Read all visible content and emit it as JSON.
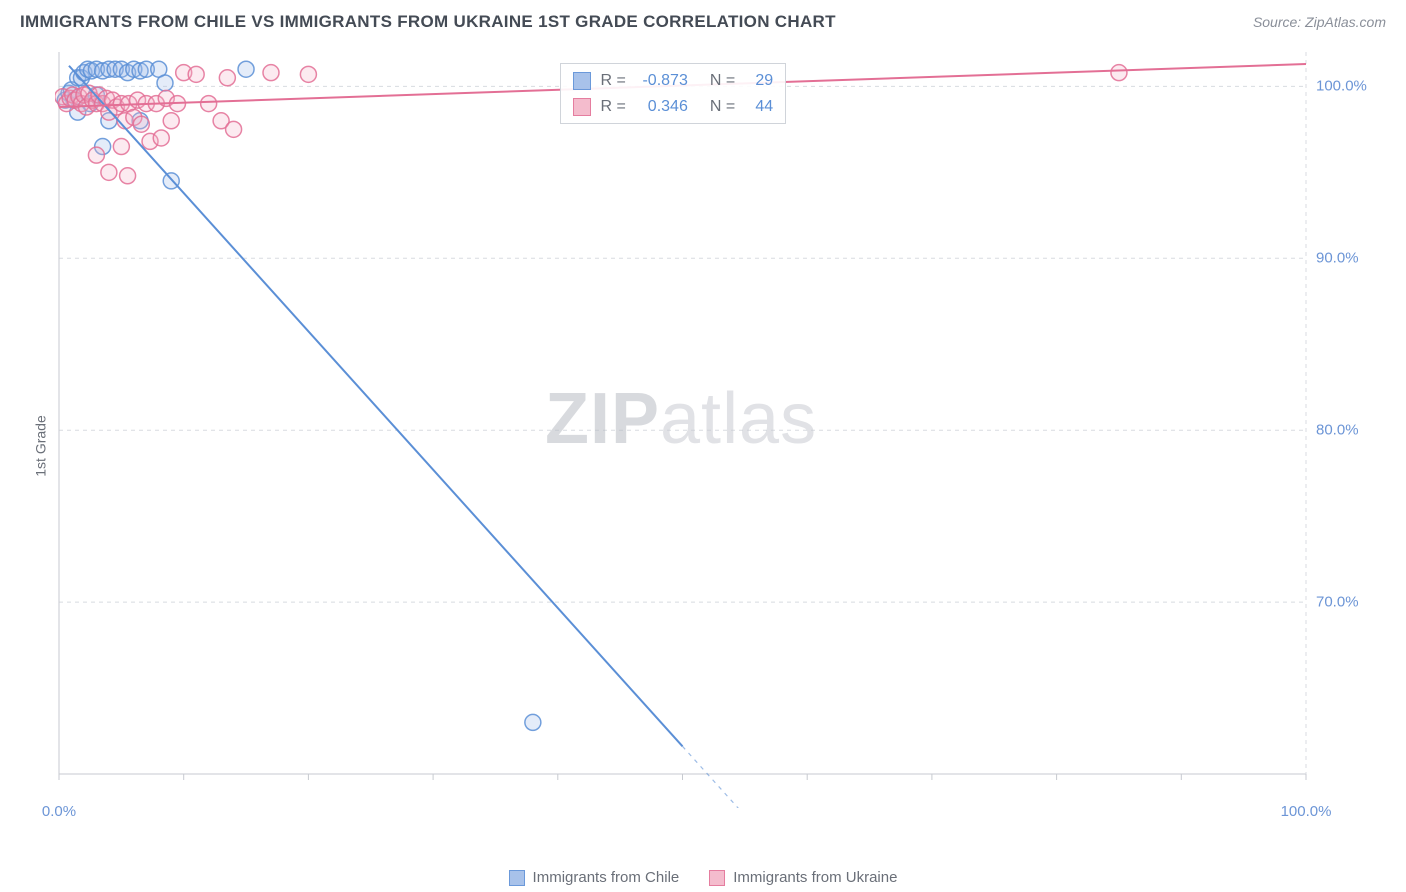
{
  "title": "IMMIGRANTS FROM CHILE VS IMMIGRANTS FROM UKRAINE 1ST GRADE CORRELATION CHART",
  "source_label": "Source: ZipAtlas.com",
  "ylabel": "1st Grade",
  "watermark": {
    "bold": "ZIP",
    "rest": "atlas"
  },
  "chart": {
    "type": "scatter",
    "background_color": "#ffffff",
    "grid_color": "#d8dbe0",
    "grid_dash": "4,4",
    "axis_line_color": "#c7cad0",
    "xlim": [
      0,
      100
    ],
    "ylim": [
      60,
      102
    ],
    "ytick_values": [
      70,
      80,
      90,
      100
    ],
    "ytick_labels": [
      "70.0%",
      "80.0%",
      "90.0%",
      "100.0%"
    ],
    "xtick_values": [
      0,
      100
    ],
    "xtick_labels": [
      "0.0%",
      "100.0%"
    ],
    "marker_radius": 8,
    "marker_fill_opacity": 0.28,
    "marker_stroke_width": 1.5,
    "line_width": 2,
    "series": [
      {
        "name": "Immigrants from Chile",
        "color_stroke": "#5b8fd6",
        "color_fill": "#9fbce8",
        "R_label": "R =",
        "R_value": "-0.873",
        "N_label": "N =",
        "N_value": "29",
        "trend": {
          "x1": 0.8,
          "y1": 101.2,
          "x2": 52,
          "y2": 60,
          "dash_after_x": 50
        },
        "points": [
          [
            0.5,
            99.2
          ],
          [
            0.8,
            99.6
          ],
          [
            1.0,
            99.8
          ],
          [
            1.2,
            99.2
          ],
          [
            1.5,
            100.5
          ],
          [
            1.8,
            100.5
          ],
          [
            2.0,
            100.8
          ],
          [
            2.3,
            101.0
          ],
          [
            2.6,
            100.9
          ],
          [
            3.0,
            101.0
          ],
          [
            3.5,
            100.9
          ],
          [
            4.0,
            101.0
          ],
          [
            4.5,
            101.0
          ],
          [
            5.0,
            101.0
          ],
          [
            5.5,
            100.8
          ],
          [
            6.0,
            101.0
          ],
          [
            6.5,
            100.9
          ],
          [
            7.0,
            101.0
          ],
          [
            8.0,
            101.0
          ],
          [
            8.5,
            100.2
          ],
          [
            2.5,
            99.0
          ],
          [
            3.0,
            99.5
          ],
          [
            4.0,
            98.0
          ],
          [
            3.5,
            96.5
          ],
          [
            1.5,
            98.5
          ],
          [
            6.5,
            98.0
          ],
          [
            9.0,
            94.5
          ],
          [
            15.0,
            101.0
          ],
          [
            38.0,
            63.0
          ]
        ]
      },
      {
        "name": "Immigrants from Ukraine",
        "color_stroke": "#e36f95",
        "color_fill": "#f3b5c8",
        "R_label": "R =",
        "R_value": "0.346",
        "N_label": "N =",
        "N_value": "44",
        "trend": {
          "x1": 0,
          "y1": 98.8,
          "x2": 100,
          "y2": 101.3
        },
        "points": [
          [
            0.3,
            99.4
          ],
          [
            0.6,
            99.0
          ],
          [
            0.9,
            99.3
          ],
          [
            1.1,
            99.5
          ],
          [
            1.3,
            99.2
          ],
          [
            1.6,
            99.4
          ],
          [
            1.8,
            99.0
          ],
          [
            2.0,
            99.5
          ],
          [
            2.2,
            98.8
          ],
          [
            2.4,
            99.6
          ],
          [
            2.7,
            99.2
          ],
          [
            3.0,
            99.0
          ],
          [
            3.2,
            99.5
          ],
          [
            3.5,
            99.0
          ],
          [
            3.8,
            99.3
          ],
          [
            4.0,
            98.5
          ],
          [
            4.3,
            99.2
          ],
          [
            4.6,
            98.8
          ],
          [
            5.0,
            99.0
          ],
          [
            5.3,
            98.0
          ],
          [
            5.6,
            99.0
          ],
          [
            6.0,
            98.2
          ],
          [
            6.3,
            99.2
          ],
          [
            6.6,
            97.8
          ],
          [
            7.0,
            99.0
          ],
          [
            7.3,
            96.8
          ],
          [
            7.8,
            99.0
          ],
          [
            8.2,
            97.0
          ],
          [
            8.6,
            99.3
          ],
          [
            9.0,
            98.0
          ],
          [
            9.5,
            99.0
          ],
          [
            10.0,
            100.8
          ],
          [
            11.0,
            100.7
          ],
          [
            12.0,
            99.0
          ],
          [
            13.0,
            98.0
          ],
          [
            13.5,
            100.5
          ],
          [
            14.0,
            97.5
          ],
          [
            3.0,
            96.0
          ],
          [
            4.0,
            95.0
          ],
          [
            5.0,
            96.5
          ],
          [
            17.0,
            100.8
          ],
          [
            20.0,
            100.7
          ],
          [
            85.0,
            100.8
          ],
          [
            5.5,
            94.8
          ]
        ]
      }
    ],
    "stats_box": {
      "left_pct": 40.2,
      "top_pct": 2.0
    },
    "legend_swatch_border": 1
  }
}
